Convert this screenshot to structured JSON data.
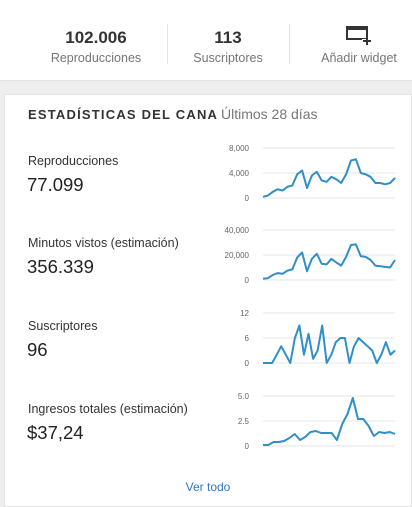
{
  "summary": {
    "views": {
      "value": "102.006",
      "label": "Reproducciones"
    },
    "subscribers": {
      "value": "113",
      "label": "Suscriptores"
    },
    "add_widget": {
      "label": "Añadir widget",
      "icon": "add-widget-icon"
    }
  },
  "channel_stats": {
    "title": "ESTADÍSTICAS DEL CANA",
    "period": "Últimos 28 días",
    "see_all": "Ver todo",
    "metrics": [
      {
        "label": "Reproducciones",
        "value": "77.099"
      },
      {
        "label": "Minutos vistos (estimación)",
        "value": "356.339"
      },
      {
        "label": "Suscriptores",
        "value": "96"
      },
      {
        "label": "Ingresos totales (estimación)",
        "value": "$37,24"
      }
    ]
  },
  "chart_data": [
    {
      "type": "line",
      "title": "Reproducciones",
      "y_ticks": [
        "0",
        "4,000",
        "8,000"
      ],
      "ylim": [
        0,
        8000
      ],
      "grid": true,
      "color": "#2f8fc7",
      "values": [
        200,
        400,
        1000,
        1400,
        1200,
        1800,
        2000,
        3800,
        4400,
        1600,
        3600,
        4200,
        2800,
        2600,
        3400,
        3000,
        2400,
        3800,
        6000,
        6200,
        4000,
        3800,
        3400,
        2400,
        2400,
        2200,
        2400,
        3200
      ]
    },
    {
      "type": "line",
      "title": "Minutos vistos (estimación)",
      "y_ticks": [
        "0",
        "20,000",
        "40,000"
      ],
      "ylim": [
        0,
        40000
      ],
      "grid": true,
      "color": "#2f8fc7",
      "values": [
        1000,
        1500,
        4000,
        5500,
        5000,
        7500,
        8500,
        18000,
        22000,
        7000,
        17000,
        21000,
        13000,
        12500,
        17000,
        14000,
        11500,
        18500,
        28000,
        28500,
        19000,
        18500,
        16000,
        11500,
        11000,
        10500,
        10000,
        16000
      ]
    },
    {
      "type": "line",
      "title": "Suscriptores",
      "y_ticks": [
        "0",
        "6",
        "12"
      ],
      "ylim": [
        0,
        12
      ],
      "grid": true,
      "color": "#2f8fc7",
      "values": [
        0,
        0,
        0,
        2,
        4,
        2,
        0,
        6,
        9,
        2,
        7,
        1,
        3,
        9,
        0,
        2,
        5,
        6,
        6,
        0,
        4,
        6,
        5,
        4,
        3,
        0,
        2,
        5,
        2,
        3
      ]
    },
    {
      "type": "line",
      "title": "Ingresos totales (estimación)",
      "y_ticks": [
        "0",
        "2.5",
        "5.0"
      ],
      "ylim": [
        0,
        5
      ],
      "grid": true,
      "color": "#2f8fc7",
      "values": [
        0.1,
        0.1,
        0.4,
        0.4,
        0.5,
        0.8,
        1.2,
        0.6,
        0.9,
        1.4,
        1.5,
        1.3,
        1.3,
        1.3,
        0.6,
        2.2,
        3.2,
        4.8,
        2.7,
        2.7,
        2.0,
        1.0,
        1.4,
        1.3,
        1.4,
        1.2
      ]
    }
  ]
}
